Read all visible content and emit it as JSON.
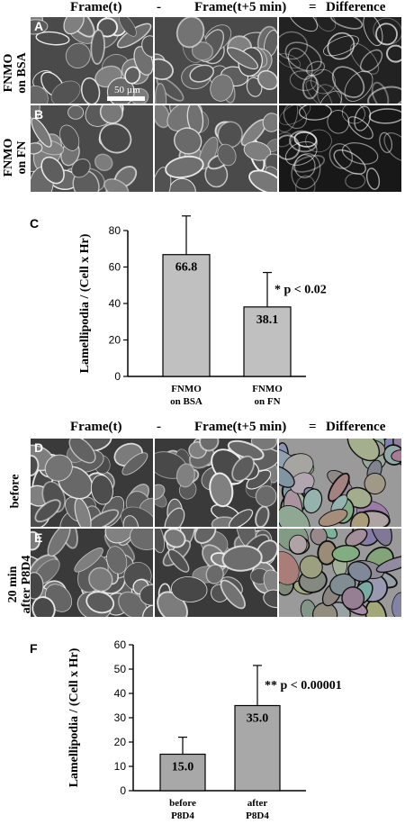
{
  "header_top": {
    "col1": "Frame(t)",
    "minus": "-",
    "col2": "Frame(t+5 min)",
    "equals": "=",
    "col3": "Difference"
  },
  "header_bottom": {
    "col1": "Frame(t)",
    "minus": "-",
    "col2": "Frame(t+5 min)",
    "equals": "=",
    "col3": "Difference"
  },
  "panels": {
    "A": {
      "letter": "A",
      "row_label_1": "FNMO",
      "row_label_2": "on BSA",
      "scale_label": "50 µm"
    },
    "B": {
      "letter": "B",
      "row_label_1": "FNMO",
      "row_label_2": "on FN"
    },
    "D": {
      "letter": "D",
      "row_label_1": "before"
    },
    "E": {
      "letter": "E",
      "row_label_1": "20 min",
      "row_label_2": "after P8D4"
    }
  },
  "chart_data": [
    {
      "panel": "C",
      "type": "bar",
      "categories": [
        [
          "FNMO",
          "on BSA"
        ],
        [
          "FNMO",
          "on FN"
        ]
      ],
      "values": [
        66.8,
        38.1
      ],
      "error_upper": [
        88,
        57
      ],
      "data_labels": [
        "66.8",
        "38.1"
      ],
      "ylabel": "Lamellipodia / (Cell x Hr)",
      "ylim": [
        0,
        80
      ],
      "yticks": [
        0,
        20,
        40,
        60,
        80
      ],
      "annotation": "* p < 0.02",
      "bar_color": "#c0c0c0",
      "grid": false
    },
    {
      "panel": "F",
      "type": "bar",
      "categories": [
        [
          "before",
          "P8D4"
        ],
        [
          "after",
          "P8D4"
        ]
      ],
      "values": [
        15.0,
        35.0
      ],
      "error_upper": [
        22,
        51.5
      ],
      "data_labels": [
        "15.0",
        "35.0"
      ],
      "ylabel": "Lamellipodia / (Cell x Hr)",
      "ylim": [
        0,
        60
      ],
      "yticks": [
        0,
        10,
        20,
        30,
        40,
        50,
        60
      ],
      "annotation": "** p < 0.00001",
      "bar_color": "#a8a8a8",
      "grid": false
    }
  ]
}
